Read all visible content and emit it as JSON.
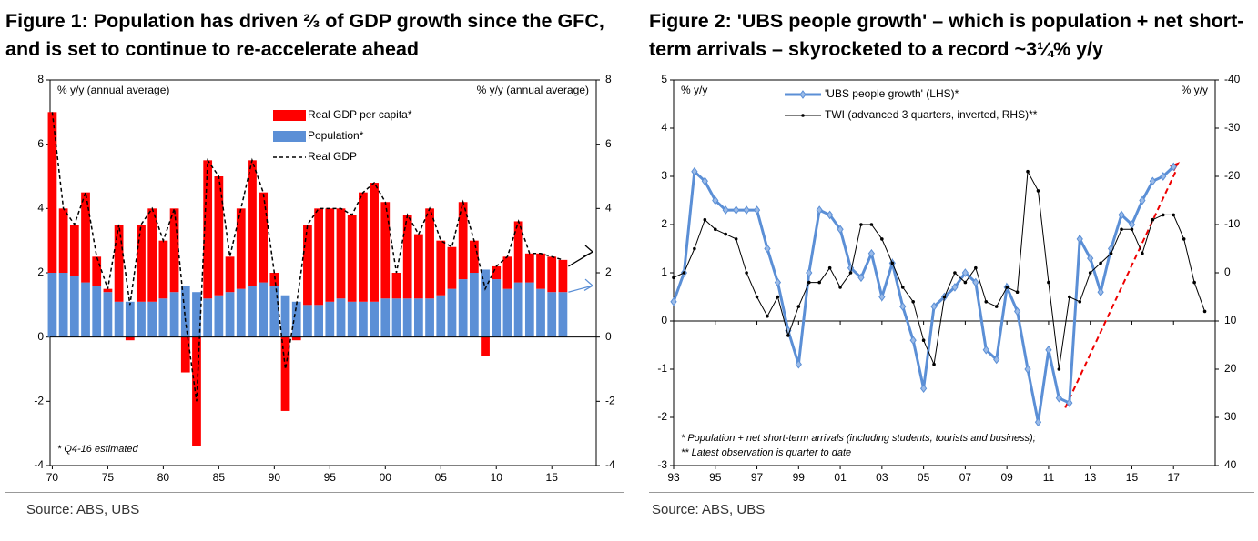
{
  "chart_data": [
    {
      "type": "bar",
      "title": "Figure 1: Population has driven ⅔ of GDP growth since the GFC, and is set to continue to re-accelerate ahead",
      "y_label": "% y/y (annual average)",
      "y2_label": "% y/y (annual average)",
      "note": "* Q4-16 estimated",
      "source": "Source:  ABS, UBS",
      "x": [
        1970,
        1971,
        1972,
        1973,
        1974,
        1975,
        1976,
        1977,
        1978,
        1979,
        1980,
        1981,
        1982,
        1983,
        1984,
        1985,
        1986,
        1987,
        1988,
        1989,
        1990,
        1991,
        1992,
        1993,
        1994,
        1995,
        1996,
        1997,
        1998,
        1999,
        2000,
        2001,
        2002,
        2003,
        2004,
        2005,
        2006,
        2007,
        2008,
        2009,
        2010,
        2011,
        2012,
        2013,
        2014,
        2015,
        2016
      ],
      "series": [
        {
          "name": "Real GDP per capita*",
          "color": "#ff0000",
          "mark": "bar",
          "values": [
            5.0,
            2.0,
            1.6,
            2.8,
            0.9,
            0.1,
            2.4,
            -0.1,
            2.4,
            2.9,
            1.8,
            2.6,
            -1.1,
            -3.4,
            4.3,
            3.7,
            1.1,
            2.5,
            3.9,
            2.8,
            0.4,
            -2.3,
            -0.1,
            2.5,
            3.0,
            2.9,
            2.8,
            2.7,
            3.4,
            3.7,
            3.0,
            0.8,
            2.6,
            2.0,
            2.8,
            1.7,
            1.3,
            2.4,
            1.0,
            -0.6,
            0.4,
            1.0,
            1.9,
            0.9,
            1.1,
            1.1,
            1.0
          ]
        },
        {
          "name": "Population*",
          "color": "#5b8fd6",
          "mark": "bar",
          "values": [
            2.0,
            2.0,
            1.9,
            1.7,
            1.6,
            1.4,
            1.1,
            1.1,
            1.1,
            1.1,
            1.2,
            1.4,
            1.6,
            1.4,
            1.2,
            1.3,
            1.4,
            1.5,
            1.6,
            1.7,
            1.6,
            1.3,
            1.1,
            1.0,
            1.0,
            1.1,
            1.2,
            1.1,
            1.1,
            1.1,
            1.2,
            1.2,
            1.2,
            1.2,
            1.2,
            1.3,
            1.5,
            1.8,
            2.0,
            2.1,
            1.8,
            1.5,
            1.7,
            1.7,
            1.5,
            1.4,
            1.4
          ]
        },
        {
          "name": "Real GDP",
          "color": "#000000",
          "mark": "line",
          "dash": true,
          "values": [
            7.0,
            4.0,
            3.5,
            4.5,
            2.5,
            1.5,
            3.5,
            1.0,
            3.5,
            4.0,
            3.0,
            4.0,
            0.5,
            -2.0,
            5.5,
            5.0,
            2.5,
            4.0,
            5.5,
            4.5,
            2.0,
            -1.0,
            1.0,
            3.5,
            4.0,
            4.0,
            4.0,
            3.8,
            4.5,
            4.8,
            4.2,
            2.0,
            3.8,
            3.2,
            4.0,
            3.0,
            2.8,
            4.2,
            3.0,
            1.5,
            2.2,
            2.5,
            3.6,
            2.6,
            2.6,
            2.5,
            2.4
          ]
        }
      ],
      "xlim": [
        1969.8,
        2019
      ],
      "xticks": [
        {
          "value": 1970,
          "label": "70"
        },
        {
          "value": 1975,
          "label": "75"
        },
        {
          "value": 1980,
          "label": "80"
        },
        {
          "value": 1985,
          "label": "85"
        },
        {
          "value": 1990,
          "label": "90"
        },
        {
          "value": 1995,
          "label": "95"
        },
        {
          "value": 2000,
          "label": "00"
        },
        {
          "value": 2005,
          "label": "05"
        },
        {
          "value": 2010,
          "label": "10"
        },
        {
          "value": 2015,
          "label": "15"
        }
      ],
      "ylim": [
        -4,
        8
      ],
      "yticks": [
        -4,
        -2,
        0,
        2,
        4,
        6,
        8
      ],
      "y2lim": [
        -4,
        8
      ],
      "y2ticks": [
        -4,
        -2,
        0,
        2,
        4,
        6,
        8
      ]
    },
    {
      "type": "line",
      "title": "Figure 2: 'UBS people growth' – which is population + net short-term arrivals – skyrocketed to a record ~3¼% y/y",
      "y_label": "% y/y",
      "y2_label": "% y/y",
      "notes": [
        "* Population + net short-term arrivals (including students, tourists and business);",
        "** Latest observation is quarter to date"
      ],
      "source": "Source:  ABS, UBS",
      "series": [
        {
          "name": "'UBS people growth' (LHS)*",
          "color": "#5b8fd6",
          "width": 3,
          "x": [
            1993.0,
            1993.5,
            1994.0,
            1994.5,
            1995.0,
            1995.5,
            1996.0,
            1996.5,
            1997.0,
            1997.5,
            1998.0,
            1998.5,
            1999.0,
            1999.5,
            2000.0,
            2000.5,
            2001.0,
            2001.5,
            2002.0,
            2002.5,
            2003.0,
            2003.5,
            2004.0,
            2004.5,
            2005.0,
            2005.5,
            2006.0,
            2006.5,
            2007.0,
            2007.5,
            2008.0,
            2008.5,
            2009.0,
            2009.5,
            2010.0,
            2010.5,
            2011.0,
            2011.5,
            2012.0,
            2012.5,
            2013.0,
            2013.5,
            2014.0,
            2014.5,
            2015.0,
            2015.5,
            2016.0,
            2016.5,
            2017.0
          ],
          "values": [
            0.4,
            1.0,
            3.1,
            2.9,
            2.5,
            2.3,
            2.3,
            2.3,
            2.3,
            1.5,
            0.8,
            -0.2,
            -0.9,
            1.0,
            2.3,
            2.2,
            1.9,
            1.1,
            0.9,
            1.4,
            0.5,
            1.2,
            0.3,
            -0.4,
            -1.4,
            0.3,
            0.5,
            0.7,
            1.0,
            0.8,
            -0.6,
            -0.8,
            0.7,
            0.2,
            -1.0,
            -2.1,
            -0.6,
            -1.6,
            -1.7,
            1.7,
            1.3,
            0.6,
            1.5,
            2.2,
            2.0,
            2.5,
            2.9,
            3.0,
            3.2
          ]
        },
        {
          "name": "TWI (advanced 3 quarters, inverted, RHS)**",
          "color": "#000000",
          "width": 1,
          "axis": "y2",
          "x": [
            1993.0,
            1993.5,
            1994.0,
            1994.5,
            1995.0,
            1995.5,
            1996.0,
            1996.5,
            1997.0,
            1997.5,
            1998.0,
            1998.5,
            1999.0,
            1999.5,
            2000.0,
            2000.5,
            2001.0,
            2001.5,
            2002.0,
            2002.5,
            2003.0,
            2003.5,
            2004.0,
            2004.5,
            2005.0,
            2005.5,
            2006.0,
            2006.5,
            2007.0,
            2007.5,
            2008.0,
            2008.5,
            2009.0,
            2009.5,
            2010.0,
            2010.5,
            2011.0,
            2011.5,
            2012.0,
            2012.5,
            2013.0,
            2013.5,
            2014.0,
            2014.5,
            2015.0,
            2015.5,
            2016.0,
            2016.5,
            2017.0,
            2017.5,
            2018.0,
            2018.5
          ],
          "values": [
            1,
            0,
            -5,
            -11,
            -9,
            -8,
            -7,
            0,
            5,
            9,
            5,
            13,
            7,
            2,
            2,
            -1,
            3,
            0,
            -10,
            -10,
            -7,
            -2,
            3,
            6,
            14,
            19,
            5,
            0,
            2,
            -1,
            6,
            7,
            3,
            4,
            -21,
            -17,
            2,
            20,
            5,
            6,
            0,
            -2,
            -4,
            -9,
            -9,
            -4,
            -11,
            -12,
            -12,
            -7,
            2,
            8
          ]
        }
      ],
      "xlim": [
        1993,
        2019
      ],
      "xticks": [
        {
          "value": 1993,
          "label": "93"
        },
        {
          "value": 1995,
          "label": "95"
        },
        {
          "value": 1997,
          "label": "97"
        },
        {
          "value": 1999,
          "label": "99"
        },
        {
          "value": 2001,
          "label": "01"
        },
        {
          "value": 2003,
          "label": "03"
        },
        {
          "value": 2005,
          "label": "05"
        },
        {
          "value": 2007,
          "label": "07"
        },
        {
          "value": 2009,
          "label": "09"
        },
        {
          "value": 2011,
          "label": "11"
        },
        {
          "value": 2013,
          "label": "13"
        },
        {
          "value": 2015,
          "label": "15"
        },
        {
          "value": 2017,
          "label": "17"
        }
      ],
      "ylim": [
        -3,
        5
      ],
      "yticks": [
        -3,
        -2,
        -1,
        0,
        1,
        2,
        3,
        4,
        5
      ],
      "y2lim": [
        40,
        -40
      ],
      "y2ticks": [
        40,
        30,
        20,
        10,
        0,
        -10,
        -20,
        -30,
        -40
      ]
    }
  ]
}
